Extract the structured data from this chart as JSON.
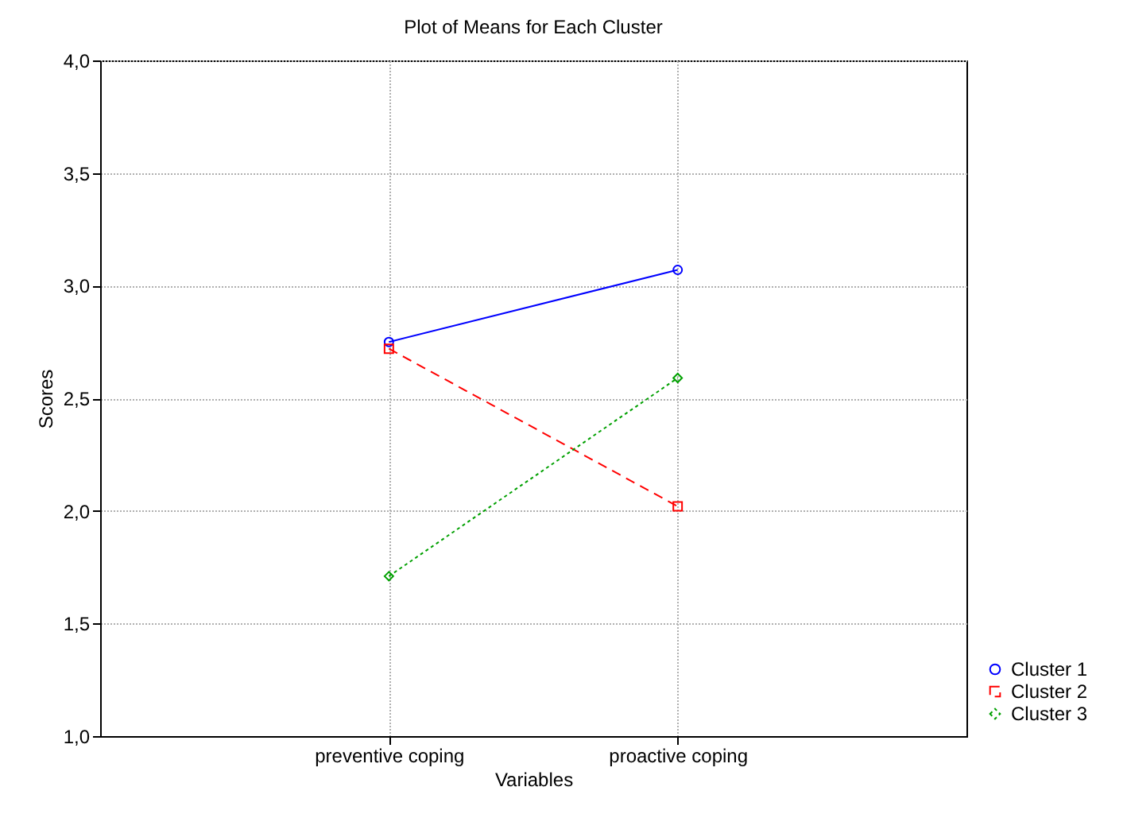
{
  "chart_data": {
    "type": "line",
    "title": "Plot of Means for Each Cluster",
    "xlabel": "Variables",
    "ylabel": "Scores",
    "categories": [
      "preventive coping",
      "proactive coping"
    ],
    "series": [
      {
        "name": "Cluster  1",
        "color": "#0000ff",
        "values": [
          2.75,
          3.07
        ],
        "marker": "circle",
        "line_style": "solid"
      },
      {
        "name": "Cluster  2",
        "color": "#ff0000",
        "values": [
          2.72,
          2.02
        ],
        "marker": "square",
        "line_style": "dashed"
      },
      {
        "name": "Cluster  3",
        "color": "#00a000",
        "values": [
          1.71,
          2.59
        ],
        "marker": "diamond",
        "line_style": "dotted"
      }
    ],
    "ylim": [
      1,
      4
    ],
    "yticks": [
      {
        "value": 1,
        "label": "1,0"
      },
      {
        "value": 1.5,
        "label": "1,5"
      },
      {
        "value": 2,
        "label": "2,0"
      },
      {
        "value": 2.5,
        "label": "2,5"
      },
      {
        "value": 3,
        "label": "3,0"
      },
      {
        "value": 3.5,
        "label": "3,5"
      },
      {
        "value": 4,
        "label": "4,0"
      }
    ],
    "grid": true,
    "legend": "bottom right"
  }
}
